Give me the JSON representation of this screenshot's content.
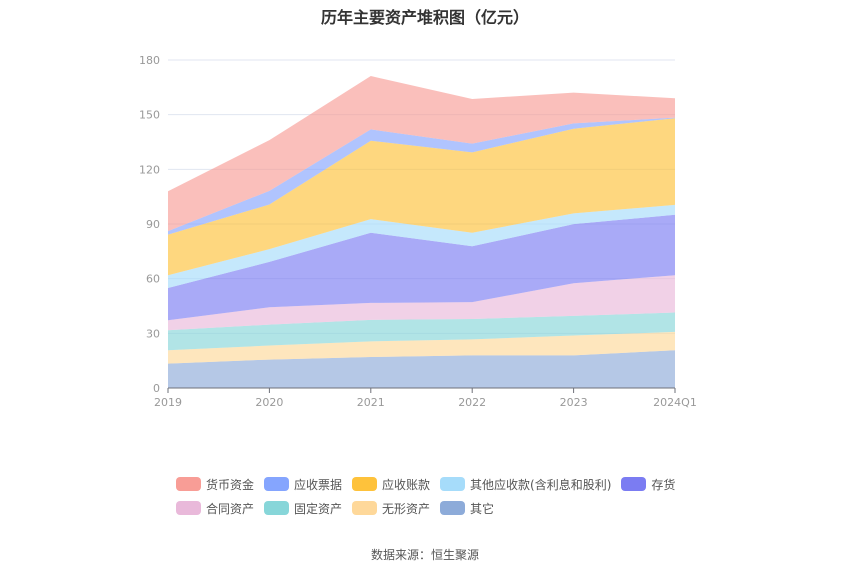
{
  "title": "历年主要资产堆积图（亿元）",
  "source": "数据来源：恒生聚源",
  "chart_data": {
    "type": "area",
    "stacked": true,
    "title": "历年主要资产堆积图（亿元）",
    "xlabel": "",
    "ylabel": "",
    "ylim": [
      0,
      180
    ],
    "yticks": [
      0,
      30,
      60,
      90,
      120,
      150,
      180
    ],
    "grid": true,
    "legend_position": "bottom",
    "categories": [
      "2019",
      "2020",
      "2021",
      "2022",
      "2023",
      "2024Q1"
    ],
    "series": [
      {
        "name": "其它",
        "color": "#8dabd9",
        "values": [
          13.4,
          15.6,
          17.0,
          17.9,
          17.9,
          20.7
        ]
      },
      {
        "name": "无形资产",
        "color": "#fed89a",
        "values": [
          7.3,
          7.7,
          8.6,
          8.8,
          10.9,
          10.1
        ]
      },
      {
        "name": "固定资产",
        "color": "#87d6d9",
        "values": [
          11.0,
          11.5,
          11.8,
          11.2,
          10.8,
          10.6
        ]
      },
      {
        "name": "合同资产",
        "color": "#e9b9da",
        "values": [
          5.5,
          9.5,
          9.3,
          9.2,
          17.9,
          20.5
        ]
      },
      {
        "name": "存货",
        "color": "#7b7cf2",
        "values": [
          17.7,
          24.9,
          38.5,
          30.7,
          32.4,
          33.2
        ]
      },
      {
        "name": "其他应收款(含利息和股利)",
        "color": "#a6dcfa",
        "values": [
          7.0,
          7.0,
          7.5,
          7.4,
          5.9,
          5.4
        ]
      },
      {
        "name": "应收账款",
        "color": "#fec23b",
        "values": [
          22.3,
          24.5,
          43.0,
          44.1,
          46.5,
          47.5
        ]
      },
      {
        "name": "应收票据",
        "color": "#85a5fe",
        "values": [
          1.9,
          7.5,
          6.2,
          4.8,
          2.9,
          0.4
        ]
      },
      {
        "name": "货币资金",
        "color": "#f89d96",
        "values": [
          21.9,
          27.8,
          29.3,
          24.5,
          16.9,
          10.6
        ]
      }
    ],
    "legend_order": [
      "货币资金",
      "应收票据",
      "应收账款",
      "其他应收款(含利息和股利)",
      "存货",
      "合同资产",
      "固定资产",
      "无形资产",
      "其它"
    ]
  }
}
